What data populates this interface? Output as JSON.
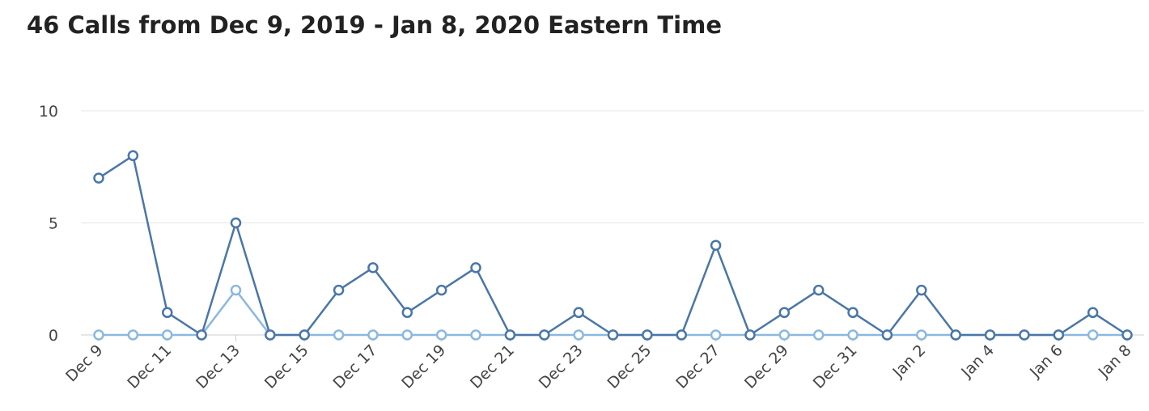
{
  "chart_data": {
    "type": "line",
    "title": "46 Calls from Dec 9, 2019 - Jan 8, 2020 Eastern Time",
    "xlabel": "",
    "ylabel": "",
    "ylim": [
      0,
      10
    ],
    "yticks": [
      0,
      5,
      10
    ],
    "grid": true,
    "legend": "none",
    "colors": [
      "#4a76a8",
      "#8ab8e0"
    ],
    "x": [
      "Dec 9",
      "Dec 10",
      "Dec 11",
      "Dec 12",
      "Dec 13",
      "Dec 14",
      "Dec 15",
      "Dec 16",
      "Dec 17",
      "Dec 18",
      "Dec 19",
      "Dec 20",
      "Dec 21",
      "Dec 22",
      "Dec 23",
      "Dec 24",
      "Dec 25",
      "Dec 26",
      "Dec 27",
      "Dec 28",
      "Dec 29",
      "Dec 30",
      "Dec 31",
      "Jan 1",
      "Jan 2",
      "Jan 3",
      "Jan 4",
      "Jan 5",
      "Jan 6",
      "Jan 7",
      "Jan 8"
    ],
    "x_tick_labels": [
      "Dec 9",
      "Dec 11",
      "Dec 13",
      "Dec 15",
      "Dec 17",
      "Dec 19",
      "Dec 21",
      "Dec 23",
      "Dec 25",
      "Dec 27",
      "Dec 29",
      "Dec 31",
      "Jan 2",
      "Jan 4",
      "Jan 6",
      "Jan 8"
    ],
    "series": [
      {
        "values": [
          7,
          8,
          1,
          0,
          5,
          0,
          0,
          2,
          3,
          1,
          2,
          3,
          0,
          0,
          1,
          0,
          0,
          0,
          4,
          0,
          1,
          2,
          1,
          0,
          2,
          0,
          0,
          0,
          0,
          1,
          0
        ]
      },
      {
        "values": [
          0,
          0,
          0,
          0,
          2,
          0,
          0,
          0,
          0,
          0,
          0,
          0,
          0,
          0,
          0,
          0,
          0,
          0,
          0,
          0,
          0,
          0,
          0,
          0,
          0,
          0,
          0,
          0,
          0,
          0,
          0
        ]
      }
    ]
  }
}
